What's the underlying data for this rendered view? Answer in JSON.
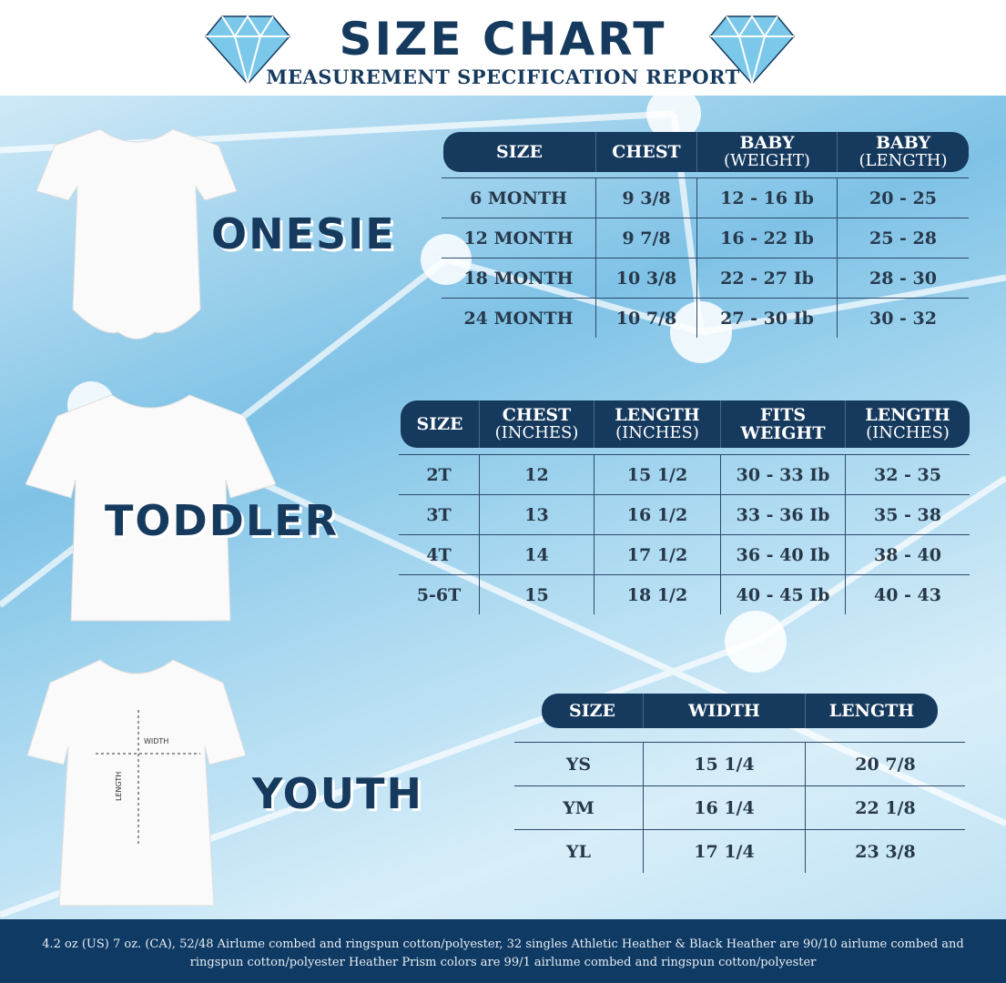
{
  "header": {
    "title": "SIZE CHART",
    "subtitle": "MEASUREMENT SPECIFICATION REPORT"
  },
  "colors": {
    "navy": "#163a5e",
    "footer": "#0f3a63",
    "background": "#8fcbea"
  },
  "onesie": {
    "label": "ONESIE",
    "headers": [
      [
        "SIZE",
        ""
      ],
      [
        "CHEST",
        ""
      ],
      [
        "BABY",
        "(WEIGHT)"
      ],
      [
        "BABY",
        "(LENGTH)"
      ]
    ],
    "rows": [
      [
        "6 MONTH",
        "9 3/8",
        "12 - 16 Ib",
        "20 - 25"
      ],
      [
        "12 MONTH",
        "9 7/8",
        "16 - 22 Ib",
        "25 - 28"
      ],
      [
        "18  MONTH",
        "10 3/8",
        "22 - 27 Ib",
        "28 - 30"
      ],
      [
        "24 MONTH",
        "10 7/8",
        "27 - 30 Ib",
        "30 - 32"
      ]
    ]
  },
  "toddler": {
    "label": "TODDLER",
    "headers": [
      [
        "SIZE",
        ""
      ],
      [
        "CHEST",
        "(INCHES)"
      ],
      [
        "LENGTH",
        "(INCHES)"
      ],
      [
        "FITS",
        "WEIGHT"
      ],
      [
        "LENGTH",
        "(INCHES)"
      ]
    ],
    "rows": [
      [
        "2T",
        "12",
        "15 1/2",
        "30 - 33 Ib",
        "32 - 35"
      ],
      [
        "3T",
        "13",
        "16 1/2",
        "33 - 36 Ib",
        "35 - 38"
      ],
      [
        "4T",
        "14",
        "17 1/2",
        "36 - 40 Ib",
        "38 - 40"
      ],
      [
        "5-6T",
        "15",
        "18 1/2",
        "40 - 45 Ib",
        "40 - 43"
      ]
    ]
  },
  "youth": {
    "label": "YOUTH",
    "width_label": "WIDTH",
    "length_label": "LENGTH",
    "headers": [
      [
        "SIZE",
        ""
      ],
      [
        "WIDTH",
        ""
      ],
      [
        "LENGTH",
        ""
      ]
    ],
    "rows": [
      [
        "YS",
        "15 1/4",
        "20 7/8"
      ],
      [
        "YM",
        "16 1/4",
        "22 1/8"
      ],
      [
        "YL",
        "17 1/4",
        "23 3/8"
      ]
    ]
  },
  "footer": {
    "text": "4.2 oz (US) 7 oz. (CA), 52/48 Airlume combed and ringspun cotton/polyester, 32 singles Athletic Heather & Black Heather are 90/10 airlume combed and ringspun cotton/polyester Heather Prism colors are 99/1 airlume combed and ringspun cotton/polyester"
  }
}
